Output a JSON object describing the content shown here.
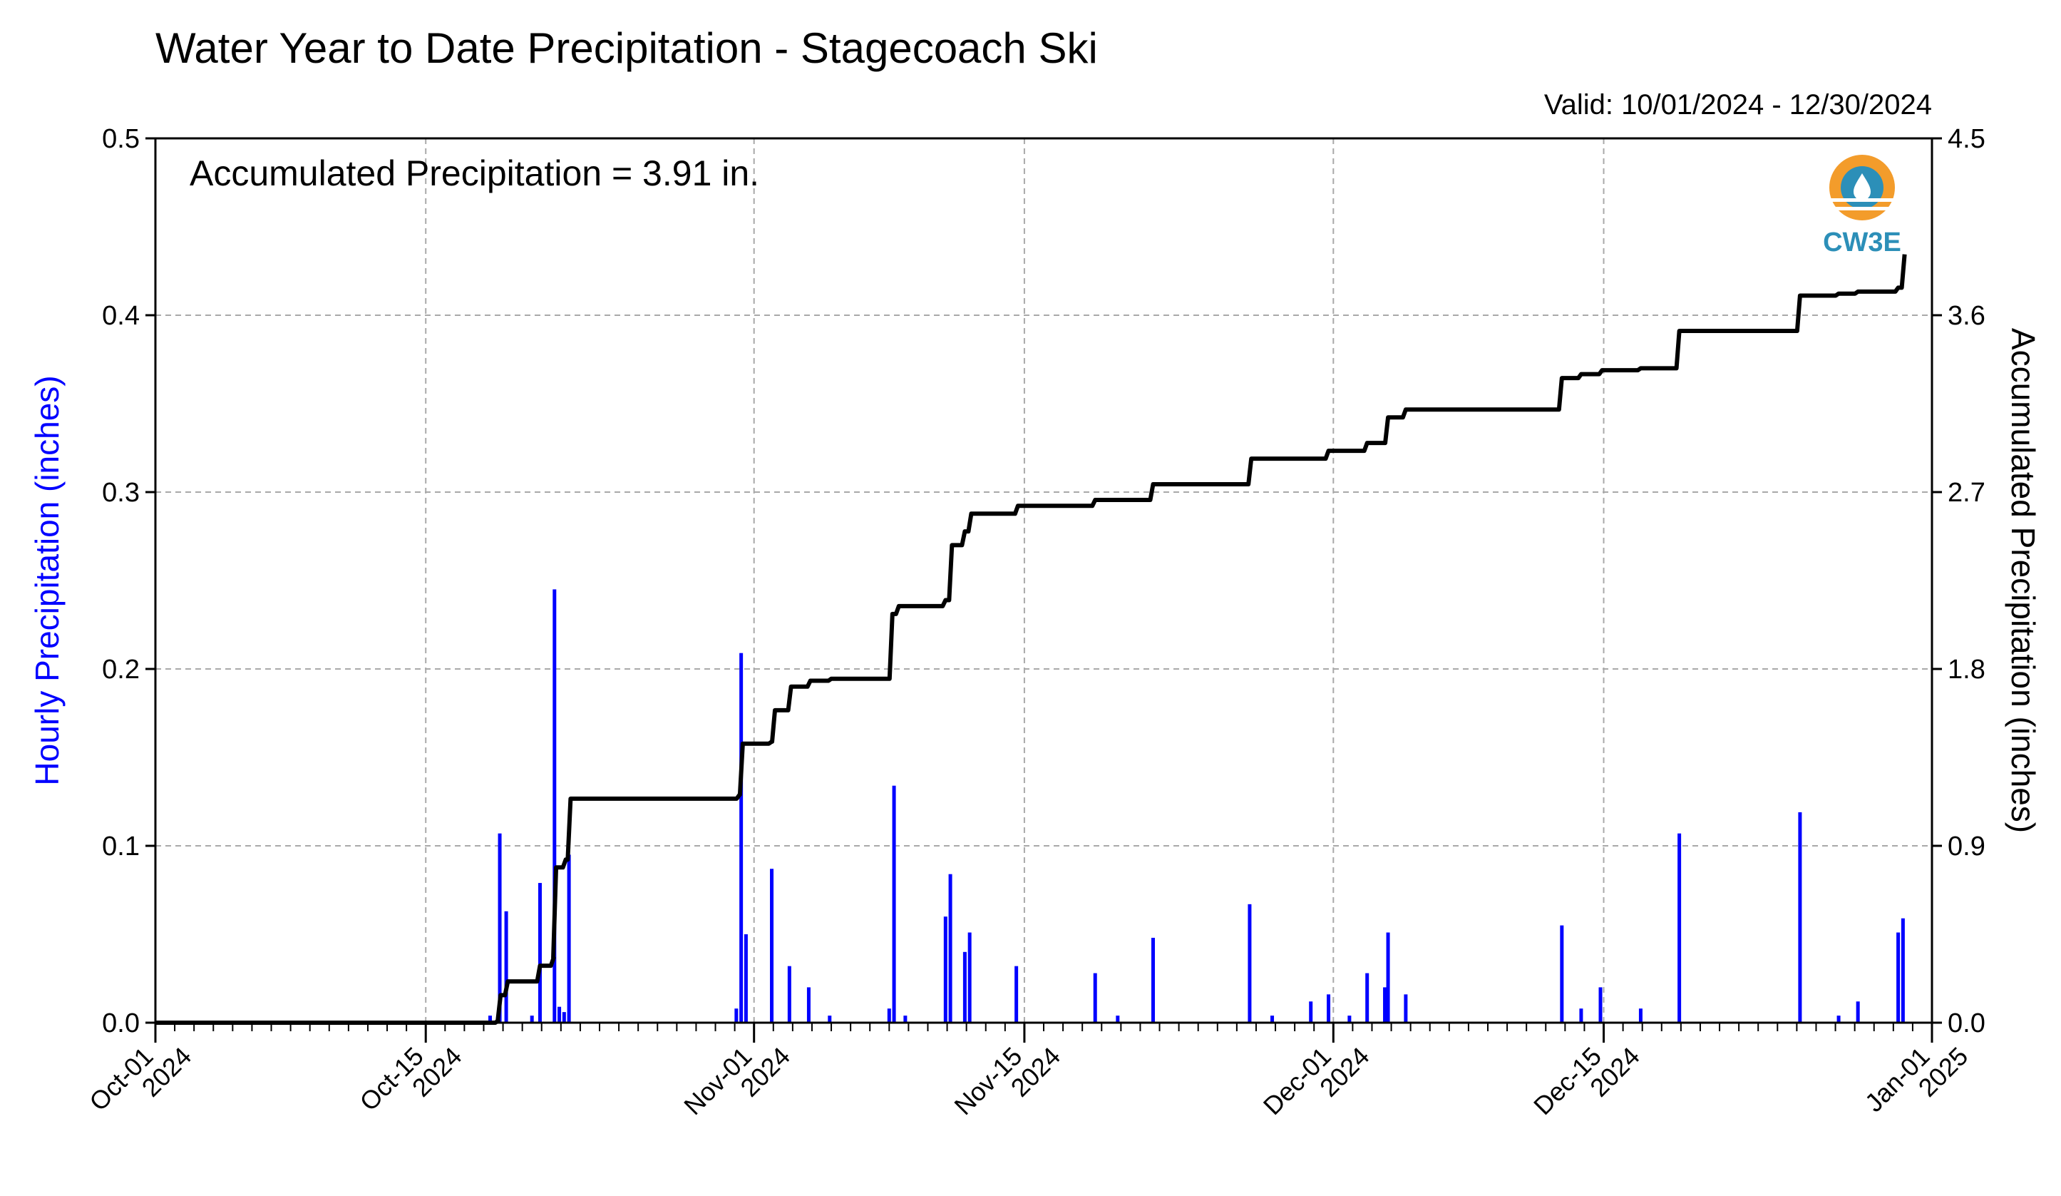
{
  "chart_data": {
    "type": "bar+line",
    "title": "Water Year to Date Precipitation - Stagecoach Ski",
    "valid_label": "Valid: 10/01/2024 - 12/30/2024",
    "annotation": "Accumulated Precipitation = 3.91 in.",
    "logo_text": "CW3E",
    "left_axis": {
      "label": "Hourly Precipitation (inches)",
      "ylim": [
        0,
        0.5
      ],
      "ticks": [
        "0.0",
        "0.1",
        "0.2",
        "0.3",
        "0.4",
        "0.5"
      ],
      "color": "#0000ff"
    },
    "right_axis": {
      "label": "Accumulated Precipitation (inches)",
      "ylim": [
        0,
        4.5
      ],
      "ticks": [
        "0.0",
        "0.9",
        "1.8",
        "2.7",
        "3.6",
        "4.5"
      ],
      "color": "#000000"
    },
    "x_axis": {
      "start": "2024-10-01",
      "end": "2025-01-01",
      "ticks": [
        {
          "date": "2024-10-01",
          "line1": "Oct-01",
          "line2": "2024"
        },
        {
          "date": "2024-10-15",
          "line1": "Oct-15",
          "line2": "2024"
        },
        {
          "date": "2024-11-01",
          "line1": "Nov-01",
          "line2": "2024"
        },
        {
          "date": "2024-11-15",
          "line1": "Nov-15",
          "line2": "2024"
        },
        {
          "date": "2024-12-01",
          "line1": "Dec-01",
          "line2": "2024"
        },
        {
          "date": "2024-12-15",
          "line1": "Dec-15",
          "line2": "2024"
        },
        {
          "date": "2025-01-01",
          "line1": "Jan-01",
          "line2": "2025"
        }
      ]
    },
    "grid": true,
    "hourly_precip": [
      {
        "t": "2024-10-18T08:00",
        "v": 0.004
      },
      {
        "t": "2024-10-18T20:00",
        "v": 0.107
      },
      {
        "t": "2024-10-19T04:00",
        "v": 0.063
      },
      {
        "t": "2024-10-20T12:00",
        "v": 0.004
      },
      {
        "t": "2024-10-20T22:00",
        "v": 0.079
      },
      {
        "t": "2024-10-21T16:00",
        "v": 0.245
      },
      {
        "t": "2024-10-21T22:00",
        "v": 0.009
      },
      {
        "t": "2024-10-22T04:00",
        "v": 0.006
      },
      {
        "t": "2024-10-22T10:00",
        "v": 0.095
      },
      {
        "t": "2024-10-31T02:00",
        "v": 0.008
      },
      {
        "t": "2024-10-31T08:00",
        "v": 0.209
      },
      {
        "t": "2024-10-31T14:00",
        "v": 0.05
      },
      {
        "t": "2024-11-01T22:00",
        "v": 0.087
      },
      {
        "t": "2024-11-02T20:00",
        "v": 0.032
      },
      {
        "t": "2024-11-03T20:00",
        "v": 0.02
      },
      {
        "t": "2024-11-04T22:00",
        "v": 0.004
      },
      {
        "t": "2024-11-08T00:00",
        "v": 0.008
      },
      {
        "t": "2024-11-08T06:00",
        "v": 0.134
      },
      {
        "t": "2024-11-08T20:00",
        "v": 0.004
      },
      {
        "t": "2024-11-10T22:00",
        "v": 0.06
      },
      {
        "t": "2024-11-11T04:00",
        "v": 0.084
      },
      {
        "t": "2024-11-11T22:00",
        "v": 0.04
      },
      {
        "t": "2024-11-12T04:00",
        "v": 0.051
      },
      {
        "t": "2024-11-14T14:00",
        "v": 0.032
      },
      {
        "t": "2024-11-18T16:00",
        "v": 0.028
      },
      {
        "t": "2024-11-19T20:00",
        "v": 0.004
      },
      {
        "t": "2024-11-21T16:00",
        "v": 0.048
      },
      {
        "t": "2024-11-26T16:00",
        "v": 0.067
      },
      {
        "t": "2024-11-27T20:00",
        "v": 0.004
      },
      {
        "t": "2024-11-29T20:00",
        "v": 0.012
      },
      {
        "t": "2024-11-30T18:00",
        "v": 0.016
      },
      {
        "t": "2024-12-01T20:00",
        "v": 0.004
      },
      {
        "t": "2024-12-02T18:00",
        "v": 0.028
      },
      {
        "t": "2024-12-03T16:00",
        "v": 0.02
      },
      {
        "t": "2024-12-03T20:00",
        "v": 0.051
      },
      {
        "t": "2024-12-04T18:00",
        "v": 0.016
      },
      {
        "t": "2024-12-12T20:00",
        "v": 0.055
      },
      {
        "t": "2024-12-13T20:00",
        "v": 0.008
      },
      {
        "t": "2024-12-14T20:00",
        "v": 0.02
      },
      {
        "t": "2024-12-16T22:00",
        "v": 0.008
      },
      {
        "t": "2024-12-18T22:00",
        "v": 0.107
      },
      {
        "t": "2024-12-25T04:00",
        "v": 0.119
      },
      {
        "t": "2024-12-27T04:00",
        "v": 0.004
      },
      {
        "t": "2024-12-28T04:00",
        "v": 0.012
      },
      {
        "t": "2024-12-30T06:00",
        "v": 0.051
      },
      {
        "t": "2024-12-30T12:00",
        "v": 0.059
      }
    ],
    "accumulated_precip": [
      {
        "t": "2024-10-01T00:00",
        "v": 0.0
      },
      {
        "t": "2024-10-18T18:00",
        "v": 0.01
      },
      {
        "t": "2024-10-18T21:00",
        "v": 0.14
      },
      {
        "t": "2024-10-19T06:00",
        "v": 0.21
      },
      {
        "t": "2024-10-20T22:00",
        "v": 0.29
      },
      {
        "t": "2024-10-21T15:00",
        "v": 0.33
      },
      {
        "t": "2024-10-21T18:00",
        "v": 0.79
      },
      {
        "t": "2024-10-22T06:00",
        "v": 0.83
      },
      {
        "t": "2024-10-22T12:00",
        "v": 1.14
      },
      {
        "t": "2024-10-31T06:00",
        "v": 1.16
      },
      {
        "t": "2024-10-31T10:00",
        "v": 1.42
      },
      {
        "t": "2024-11-01T22:00",
        "v": 1.43
      },
      {
        "t": "2024-11-02T02:00",
        "v": 1.59
      },
      {
        "t": "2024-11-02T22:00",
        "v": 1.71
      },
      {
        "t": "2024-11-03T22:00",
        "v": 1.74
      },
      {
        "t": "2024-11-05T00:00",
        "v": 1.75
      },
      {
        "t": "2024-11-08T04:00",
        "v": 2.08
      },
      {
        "t": "2024-11-08T12:00",
        "v": 2.12
      },
      {
        "t": "2024-11-10T22:00",
        "v": 2.15
      },
      {
        "t": "2024-11-11T06:00",
        "v": 2.43
      },
      {
        "t": "2024-11-11T22:00",
        "v": 2.5
      },
      {
        "t": "2024-11-12T06:00",
        "v": 2.59
      },
      {
        "t": "2024-11-14T16:00",
        "v": 2.63
      },
      {
        "t": "2024-11-18T16:00",
        "v": 2.66
      },
      {
        "t": "2024-11-21T16:00",
        "v": 2.74
      },
      {
        "t": "2024-11-26T18:00",
        "v": 2.87
      },
      {
        "t": "2024-11-30T18:00",
        "v": 2.91
      },
      {
        "t": "2024-12-02T18:00",
        "v": 2.95
      },
      {
        "t": "2024-12-03T20:00",
        "v": 3.08
      },
      {
        "t": "2024-12-04T18:00",
        "v": 3.12
      },
      {
        "t": "2024-12-12T20:00",
        "v": 3.28
      },
      {
        "t": "2024-12-13T20:00",
        "v": 3.3
      },
      {
        "t": "2024-12-14T22:00",
        "v": 3.32
      },
      {
        "t": "2024-12-16T22:00",
        "v": 3.33
      },
      {
        "t": "2024-12-18T22:00",
        "v": 3.52
      },
      {
        "t": "2024-12-25T04:00",
        "v": 3.7
      },
      {
        "t": "2024-12-27T04:00",
        "v": 3.71
      },
      {
        "t": "2024-12-28T04:00",
        "v": 3.72
      },
      {
        "t": "2024-12-30T06:00",
        "v": 3.74
      },
      {
        "t": "2024-12-30T14:00",
        "v": 3.91
      }
    ]
  },
  "colors": {
    "bars": "#0000ff",
    "line": "#000000",
    "left_axis_label": "#0000ff",
    "logo_orange": "#f39c2b",
    "logo_blue": "#2c8fb8"
  }
}
